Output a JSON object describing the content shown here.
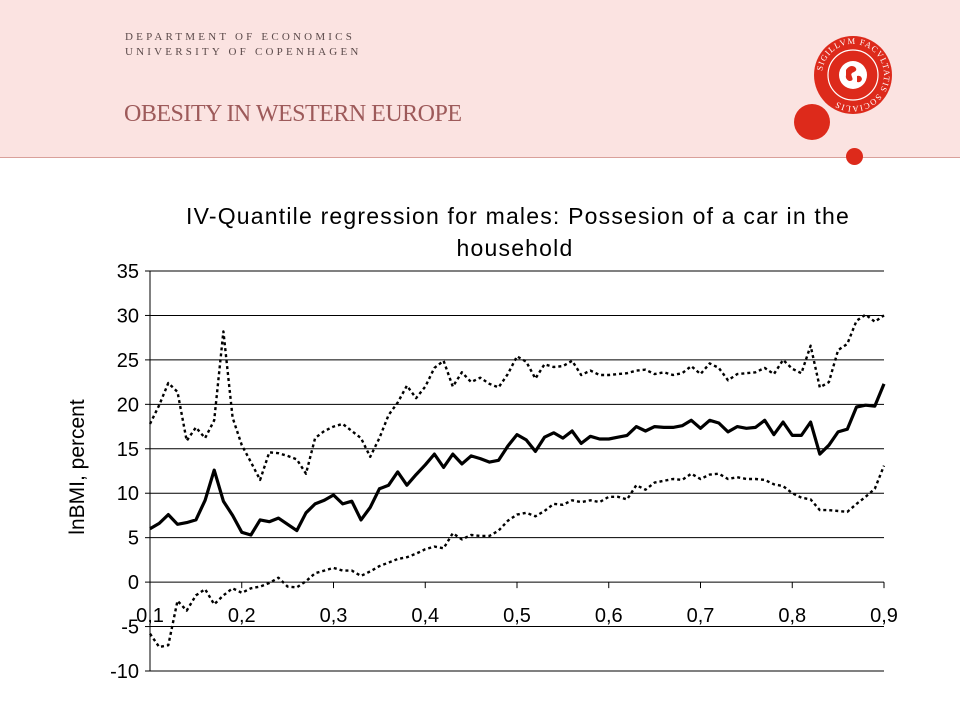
{
  "header": {
    "dept_line1": "DEPARTMENT OF ECONOMICS",
    "dept_line2": "UNIVERSITY OF COPENHAGEN",
    "slide_title": "OBESITY IN WESTERN EUROPE",
    "seal_text": "SIGILLVM FACVLTATIS SOCIALIS",
    "accent_color": "#dd2a1b"
  },
  "chart_data": {
    "type": "line",
    "title_line1": "IV-Quantile regression for males: Possesion of a car in the",
    "title_line2": "household",
    "xlabel": "",
    "ylabel": "lnBMI, percent",
    "xlim": [
      0.1,
      0.9
    ],
    "ylim": [
      -10,
      35
    ],
    "x_tick_labels": [
      "0,1",
      "0,2",
      "0,3",
      "0,4",
      "0,5",
      "0,6",
      "0,7",
      "0,8",
      "0,9"
    ],
    "x_ticks": [
      0.1,
      0.2,
      0.3,
      0.4,
      0.5,
      0.6,
      0.7,
      0.8,
      0.9
    ],
    "y_ticks": [
      -10,
      -5,
      0,
      5,
      10,
      15,
      20,
      25,
      30,
      35
    ],
    "grid": "horizontal",
    "series": [
      {
        "style": "solid",
        "x": [
          0.1,
          0.11,
          0.12,
          0.13,
          0.14,
          0.15,
          0.16,
          0.17,
          0.18,
          0.19,
          0.2,
          0.21,
          0.22,
          0.23,
          0.24,
          0.25,
          0.26,
          0.27,
          0.28,
          0.29,
          0.3,
          0.31,
          0.32,
          0.33,
          0.34,
          0.35,
          0.36,
          0.37,
          0.38,
          0.39,
          0.4,
          0.41,
          0.42,
          0.43,
          0.44,
          0.45,
          0.46,
          0.47,
          0.48,
          0.49,
          0.5,
          0.51,
          0.52,
          0.53,
          0.54,
          0.55,
          0.56,
          0.57,
          0.58,
          0.59,
          0.6,
          0.61,
          0.62,
          0.63,
          0.64,
          0.65,
          0.66,
          0.67,
          0.68,
          0.69,
          0.7,
          0.71,
          0.72,
          0.73,
          0.74,
          0.75,
          0.76,
          0.77,
          0.78,
          0.79,
          0.8,
          0.81,
          0.82,
          0.83,
          0.84,
          0.85,
          0.86,
          0.87,
          0.88,
          0.89,
          0.9
        ],
        "y": [
          6,
          6.6,
          7.6,
          6.5,
          6.7,
          7,
          9.2,
          12.6,
          9.1,
          7.5,
          5.6,
          5.3,
          7,
          6.8,
          7.2,
          6.5,
          5.8,
          7.8,
          8.8,
          9.2,
          9.8,
          8.8,
          9.1,
          7,
          8.4,
          10.5,
          10.9,
          12.4,
          10.9,
          12.1,
          13.2,
          14.4,
          12.9,
          14.4,
          13.3,
          14.2,
          13.9,
          13.5,
          13.7,
          15.3,
          16.6,
          16,
          14.7,
          16.3,
          16.8,
          16.2,
          17,
          15.6,
          16.4,
          16.1,
          16.1,
          16.3,
          16.5,
          17.5,
          17,
          17.5,
          17.4,
          17.4,
          17.6,
          18.2,
          17.3,
          18.2,
          17.9,
          16.9,
          17.5,
          17.3,
          17.4,
          18.2,
          16.6,
          18,
          16.5,
          16.5,
          18,
          14.4,
          15.4,
          16.9,
          17.2,
          19.7,
          19.9,
          19.8,
          22.3
        ]
      },
      {
        "style": "dotted",
        "x": [
          0.1,
          0.11,
          0.12,
          0.13,
          0.14,
          0.15,
          0.16,
          0.17,
          0.18,
          0.19,
          0.2,
          0.21,
          0.22,
          0.23,
          0.24,
          0.25,
          0.26,
          0.27,
          0.28,
          0.29,
          0.3,
          0.31,
          0.32,
          0.33,
          0.34,
          0.35,
          0.36,
          0.37,
          0.38,
          0.39,
          0.4,
          0.41,
          0.42,
          0.43,
          0.44,
          0.45,
          0.46,
          0.47,
          0.48,
          0.49,
          0.5,
          0.51,
          0.52,
          0.53,
          0.54,
          0.55,
          0.56,
          0.57,
          0.58,
          0.59,
          0.6,
          0.61,
          0.62,
          0.63,
          0.64,
          0.65,
          0.66,
          0.67,
          0.68,
          0.69,
          0.7,
          0.71,
          0.72,
          0.73,
          0.74,
          0.75,
          0.76,
          0.77,
          0.78,
          0.79,
          0.8,
          0.81,
          0.82,
          0.83,
          0.84,
          0.85,
          0.86,
          0.87,
          0.88,
          0.89,
          0.9
        ],
        "y": [
          17.8,
          19.9,
          22.4,
          21.4,
          15.9,
          17.4,
          16.2,
          18.2,
          28.2,
          18.5,
          15.4,
          13.5,
          11.5,
          14.6,
          14.5,
          14.2,
          13.8,
          12.2,
          16.2,
          17,
          17.5,
          17.8,
          17,
          16.2,
          14.1,
          16.2,
          18.8,
          20.2,
          22.1,
          20.7,
          22,
          24.1,
          24.9,
          22,
          23.6,
          22.5,
          23,
          22.3,
          21.9,
          23.4,
          25.4,
          24.8,
          22.9,
          24.5,
          24.2,
          24.3,
          24.9,
          23.3,
          23.8,
          23.3,
          23.3,
          23.4,
          23.5,
          23.8,
          23.9,
          23.4,
          23.6,
          23.3,
          23.5,
          24.3,
          23.4,
          24.6,
          24.1,
          22.7,
          23.4,
          23.5,
          23.6,
          24.1,
          23.4,
          25,
          24,
          23.5,
          26.6,
          21.9,
          22.5,
          26.1,
          26.8,
          29.4,
          30.1,
          29.3,
          30
        ]
      },
      {
        "style": "dotted",
        "x": [
          0.1,
          0.11,
          0.12,
          0.13,
          0.14,
          0.15,
          0.16,
          0.17,
          0.18,
          0.19,
          0.2,
          0.21,
          0.22,
          0.23,
          0.24,
          0.25,
          0.26,
          0.27,
          0.28,
          0.29,
          0.3,
          0.31,
          0.32,
          0.33,
          0.34,
          0.35,
          0.36,
          0.37,
          0.38,
          0.39,
          0.4,
          0.41,
          0.42,
          0.43,
          0.44,
          0.45,
          0.46,
          0.47,
          0.48,
          0.49,
          0.5,
          0.51,
          0.52,
          0.53,
          0.54,
          0.55,
          0.56,
          0.57,
          0.58,
          0.59,
          0.6,
          0.61,
          0.62,
          0.63,
          0.64,
          0.65,
          0.66,
          0.67,
          0.68,
          0.69,
          0.7,
          0.71,
          0.72,
          0.73,
          0.74,
          0.75,
          0.76,
          0.77,
          0.78,
          0.79,
          0.8,
          0.81,
          0.82,
          0.83,
          0.84,
          0.85,
          0.86,
          0.87,
          0.88,
          0.89,
          0.9
        ],
        "y": [
          -5.8,
          -7.3,
          -7.1,
          -2.1,
          -3.2,
          -1.5,
          -0.8,
          -2.5,
          -1.5,
          -0.7,
          -1.2,
          -0.7,
          -0.5,
          -0.1,
          0.5,
          -0.5,
          -0.6,
          0.1,
          1,
          1.3,
          1.6,
          1.3,
          1.3,
          0.7,
          1.2,
          1.8,
          2.2,
          2.6,
          2.8,
          3.2,
          3.7,
          4,
          3.8,
          5.5,
          4.8,
          5.3,
          5.2,
          5.2,
          5.8,
          6.9,
          7.6,
          7.8,
          7.4,
          8,
          8.8,
          8.7,
          9.2,
          9,
          9.2,
          9,
          9.6,
          9.6,
          9.3,
          10.9,
          10.4,
          11.2,
          11.4,
          11.6,
          11.5,
          12.2,
          11.6,
          12.1,
          12.2,
          11.6,
          11.8,
          11.6,
          11.6,
          11.5,
          11,
          10.8,
          10,
          9.5,
          9.3,
          8.1,
          8.1,
          8,
          7.9,
          8.8,
          9.6,
          10.5,
          13.1
        ]
      }
    ]
  }
}
